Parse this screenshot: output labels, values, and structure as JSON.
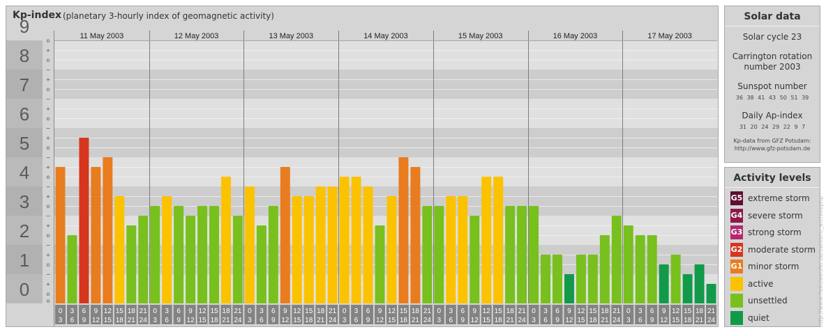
{
  "header": {
    "title": "Kp-index",
    "subtitle": "(planetary 3-hourly index of geomagnetic activity)"
  },
  "chart_data": {
    "type": "bar",
    "days": [
      "11 May 2003",
      "12 May 2003",
      "13 May 2003",
      "14 May 2003",
      "15 May 2003",
      "16 May 2003",
      "17 May 2003"
    ],
    "intervals": [
      {
        "start": "0",
        "end": "3"
      },
      {
        "start": "3",
        "end": "6"
      },
      {
        "start": "6",
        "end": "9"
      },
      {
        "start": "9",
        "end": "12"
      },
      {
        "start": "12",
        "end": "15"
      },
      {
        "start": "15",
        "end": "18"
      },
      {
        "start": "18",
        "end": "21"
      },
      {
        "start": "21",
        "end": "24"
      }
    ],
    "values": [
      4.667,
      2.333,
      5.667,
      4.667,
      5.0,
      3.667,
      2.667,
      3.0,
      3.333,
      3.667,
      3.333,
      3.0,
      3.333,
      3.333,
      4.333,
      3.0,
      4.0,
      2.667,
      3.333,
      4.667,
      3.667,
      3.667,
      4.0,
      4.0,
      4.333,
      4.333,
      4.0,
      2.667,
      3.667,
      5.0,
      4.667,
      3.333,
      3.333,
      3.667,
      3.667,
      3.0,
      4.333,
      4.333,
      3.333,
      3.333,
      3.333,
      1.667,
      1.667,
      1.0,
      1.667,
      1.667,
      2.333,
      3.0,
      2.667,
      2.333,
      2.333,
      1.333,
      1.667,
      1.0,
      1.333,
      0.667
    ],
    "ylim": [
      0,
      9
    ],
    "y_ticks": [
      "0",
      "1",
      "2",
      "3",
      "4",
      "5",
      "6",
      "7",
      "8",
      "9"
    ],
    "minor_labels": [
      "−",
      "o",
      "+"
    ],
    "top_minor_label": "o",
    "colors": {
      "quiet": "#129a4a",
      "unsettled": "#78c01e",
      "active": "#fbc200",
      "minor_storm": "#e87c1e",
      "moderate_storm": "#d6361e",
      "band_light": "#e0e0e0",
      "band_dark": "#cdcdcd",
      "tick_column": "#d4d4d4",
      "axis_gray": "#9a9a9a",
      "interval_box": "#838383"
    }
  },
  "solar_data": {
    "title": "Solar data",
    "solar_cycle": "Solar cycle 23",
    "carrington_line1": "Carrington rotation",
    "carrington_line2": "number 2003",
    "sunspot_title": "Sunspot number",
    "sunspot_numbers": "36 38 41 43 50 51 39",
    "ap_title": "Daily Ap-index",
    "ap_numbers": "31 20 24 29 22 9 7",
    "credit_line1": "Kp-data from GFZ Potsdam:",
    "credit_line2": "http://www.gfz-potsdam.de"
  },
  "activity_levels": {
    "title": "Activity levels",
    "items": [
      {
        "code": "G5",
        "label": "extreme storm",
        "color": "#5c0f2e"
      },
      {
        "code": "G4",
        "label": "severe storm",
        "color": "#8a1a4a"
      },
      {
        "code": "G3",
        "label": "strong storm",
        "color": "#b32870"
      },
      {
        "code": "G2",
        "label": "moderate storm",
        "color": "#d6361e"
      },
      {
        "code": "G1",
        "label": "minor storm",
        "color": "#e87c1e"
      },
      {
        "code": "",
        "label": "active",
        "color": "#fbc200"
      },
      {
        "code": "",
        "label": "unsettled",
        "color": "#78c01e"
      },
      {
        "code": "",
        "label": "quiet",
        "color": "#129a4a"
      }
    ]
  },
  "credit": "http://www.fieeuweufer.de/swiss/ro_archivephp"
}
